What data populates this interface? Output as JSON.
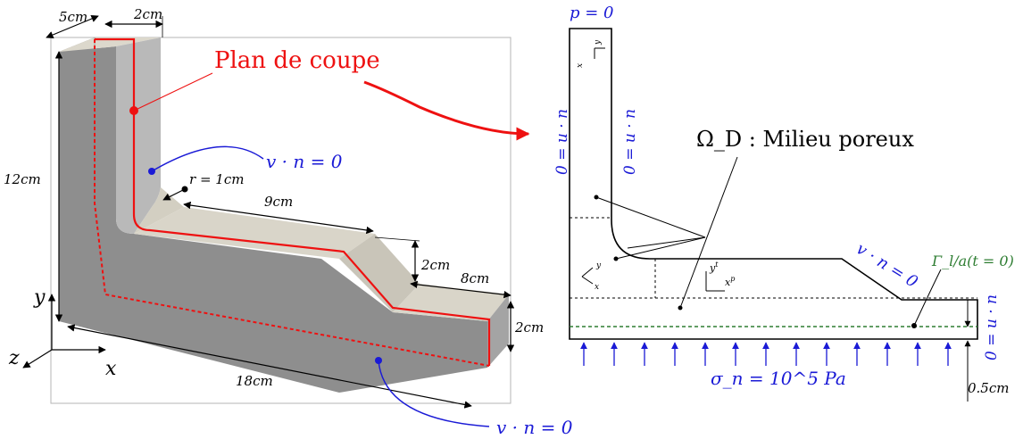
{
  "left_figure": {
    "dim_5cm": "5cm",
    "dim_2cm_top": "2cm",
    "cut_plane_label": "Plan de coupe",
    "dim_12cm": "12cm",
    "axis_y": "y",
    "axis_z": "z",
    "axis_x": "x",
    "radius_label": "r = 1cm",
    "dim_9cm": "9cm",
    "dim_2cm_step": "2cm",
    "dim_8cm": "8cm",
    "dim_2cm_right": "2cm",
    "dim_18cm": "18cm",
    "bc_side": "v · n = 0",
    "bc_bottom": "v · n = 0"
  },
  "right_figure": {
    "top_bc": "p = 0",
    "left_bc": "0 = u · n",
    "inner_bc": "0 = u · n",
    "domain_label": "Ω_D : Milieu poreux",
    "slope_bc": "v · n = 0",
    "gamma_label": "Γ_l/a(t = 0)",
    "right_bc": "0 = u · n",
    "sigma_label": "σ_n = 10^5 Pa",
    "thickness_label": "0.5cm"
  },
  "colors": {
    "red": "#ee1111",
    "blue": "#1a1ad6",
    "green": "#2e7d32",
    "face_top": "#d8d4c8",
    "face_front": "#8c8c8c",
    "face_side": "#a6a6a6"
  }
}
